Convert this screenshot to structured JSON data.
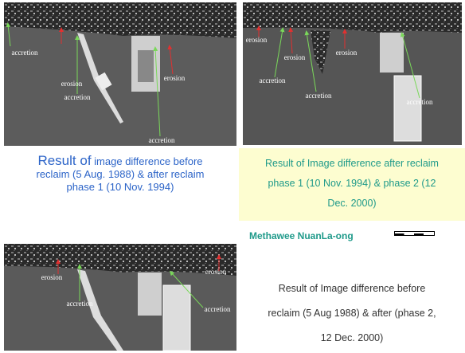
{
  "panels": [
    {
      "labels": [
        "accretion",
        "erosion",
        "accretion",
        "erosion",
        "accretion"
      ],
      "caption": {
        "lead": "Result of",
        "lines": [
          "image difference before",
          "reclaim (5 Aug. 1988) & after reclaim",
          "phase 1 (10 Nov. 1994)"
        ]
      }
    },
    {
      "labels": [
        "erosion",
        "erosion",
        "erosion",
        "accretion",
        "accretion",
        "accretion"
      ],
      "caption": {
        "lines": [
          "Result of Image difference after reclaim",
          "phase 1 (10 Nov. 1994) & phase 2 (12",
          "Dec. 2000)"
        ]
      }
    },
    {
      "labels": [
        "erosion",
        "erosion",
        "accretion",
        "accretion"
      ],
      "caption": {
        "lines": [
          "Result of  Image difference  before",
          "reclaim (5 Aug 1988) & after (phase 2,",
          "12 Dec. 2000)"
        ]
      }
    }
  ],
  "author": "Methawee NuanLa-ong"
}
